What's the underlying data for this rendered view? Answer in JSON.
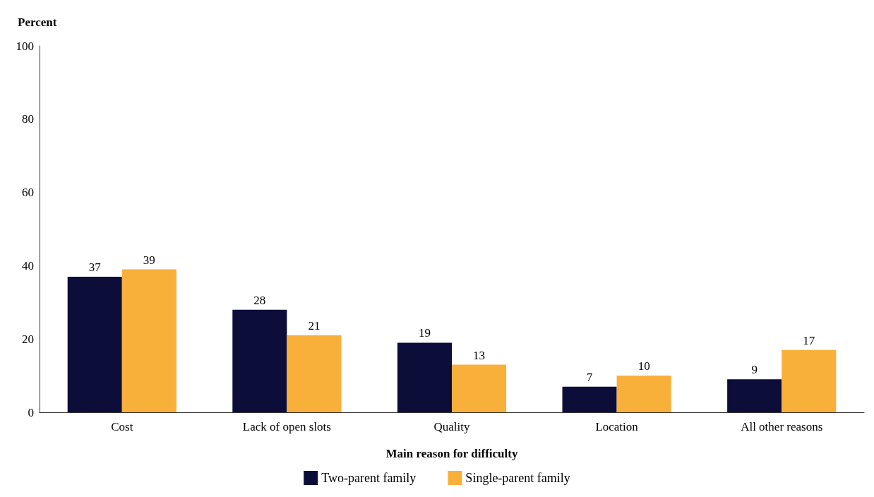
{
  "chart_data": {
    "type": "bar",
    "ylabel": "Percent",
    "xlabel": "Main reason for difficulty",
    "categories": [
      "Cost",
      "Lack of open slots",
      "Quality",
      "Location",
      "All other reasons"
    ],
    "series": [
      {
        "name": "Two-parent family",
        "color": "#0d0d3a",
        "values": [
          37,
          28,
          19,
          7,
          9
        ]
      },
      {
        "name": "Single-parent family",
        "color": "#f9b03b",
        "values": [
          39,
          21,
          13,
          10,
          17
        ]
      }
    ],
    "ylim": [
      0,
      100
    ],
    "yticks": [
      0,
      20,
      40,
      60,
      80,
      100
    ],
    "grid": false,
    "legend": "bottom",
    "data_labels": true
  }
}
